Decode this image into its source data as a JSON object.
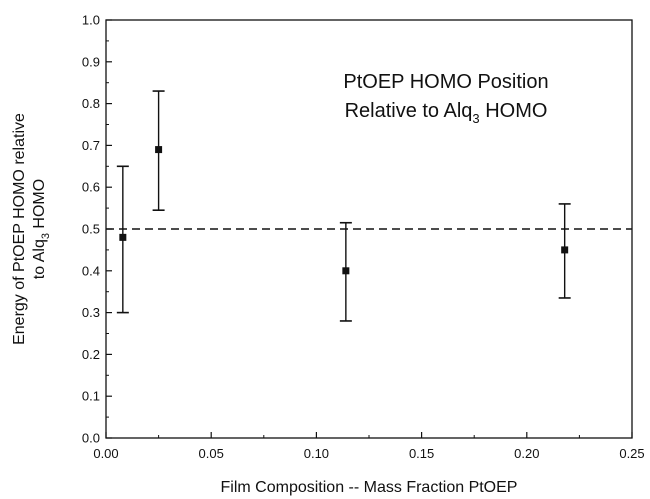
{
  "chart_data": {
    "type": "scatter",
    "title": "",
    "xlabel": "Film Composition -- Mass Fraction PtOEP",
    "ylabel_line1": "Energy of PtOEP HOMO relative",
    "ylabel_line2_prefix": "to Alq",
    "ylabel_line2_sub": "3",
    "ylabel_line2_suffix": " HOMO",
    "xlim": [
      0.0,
      0.25
    ],
    "ylim": [
      0.0,
      1.0
    ],
    "x_ticks": [
      "0.00",
      "0.05",
      "0.10",
      "0.15",
      "0.20",
      "0.25"
    ],
    "y_ticks": [
      "0.0",
      "0.1",
      "0.2",
      "0.3",
      "0.4",
      "0.5",
      "0.6",
      "0.7",
      "0.8",
      "0.9",
      "1.0"
    ],
    "grid": false,
    "points": [
      {
        "x": 0.008,
        "y": 0.48,
        "y_low": 0.3,
        "y_high": 0.65
      },
      {
        "x": 0.025,
        "y": 0.69,
        "y_low": 0.545,
        "y_high": 0.83
      },
      {
        "x": 0.114,
        "y": 0.4,
        "y_low": 0.28,
        "y_high": 0.515
      },
      {
        "x": 0.218,
        "y": 0.45,
        "y_low": 0.335,
        "y_high": 0.56
      }
    ],
    "reference_line": {
      "y": 0.5,
      "style": "dashed"
    },
    "annotation_line1": "PtOEP HOMO Position",
    "annotation_line2_prefix": "Relative to Alq",
    "annotation_line2_sub": "3",
    "annotation_line2_suffix": " HOMO",
    "colors": {
      "axis": "#111111",
      "marker": "#111111"
    }
  }
}
